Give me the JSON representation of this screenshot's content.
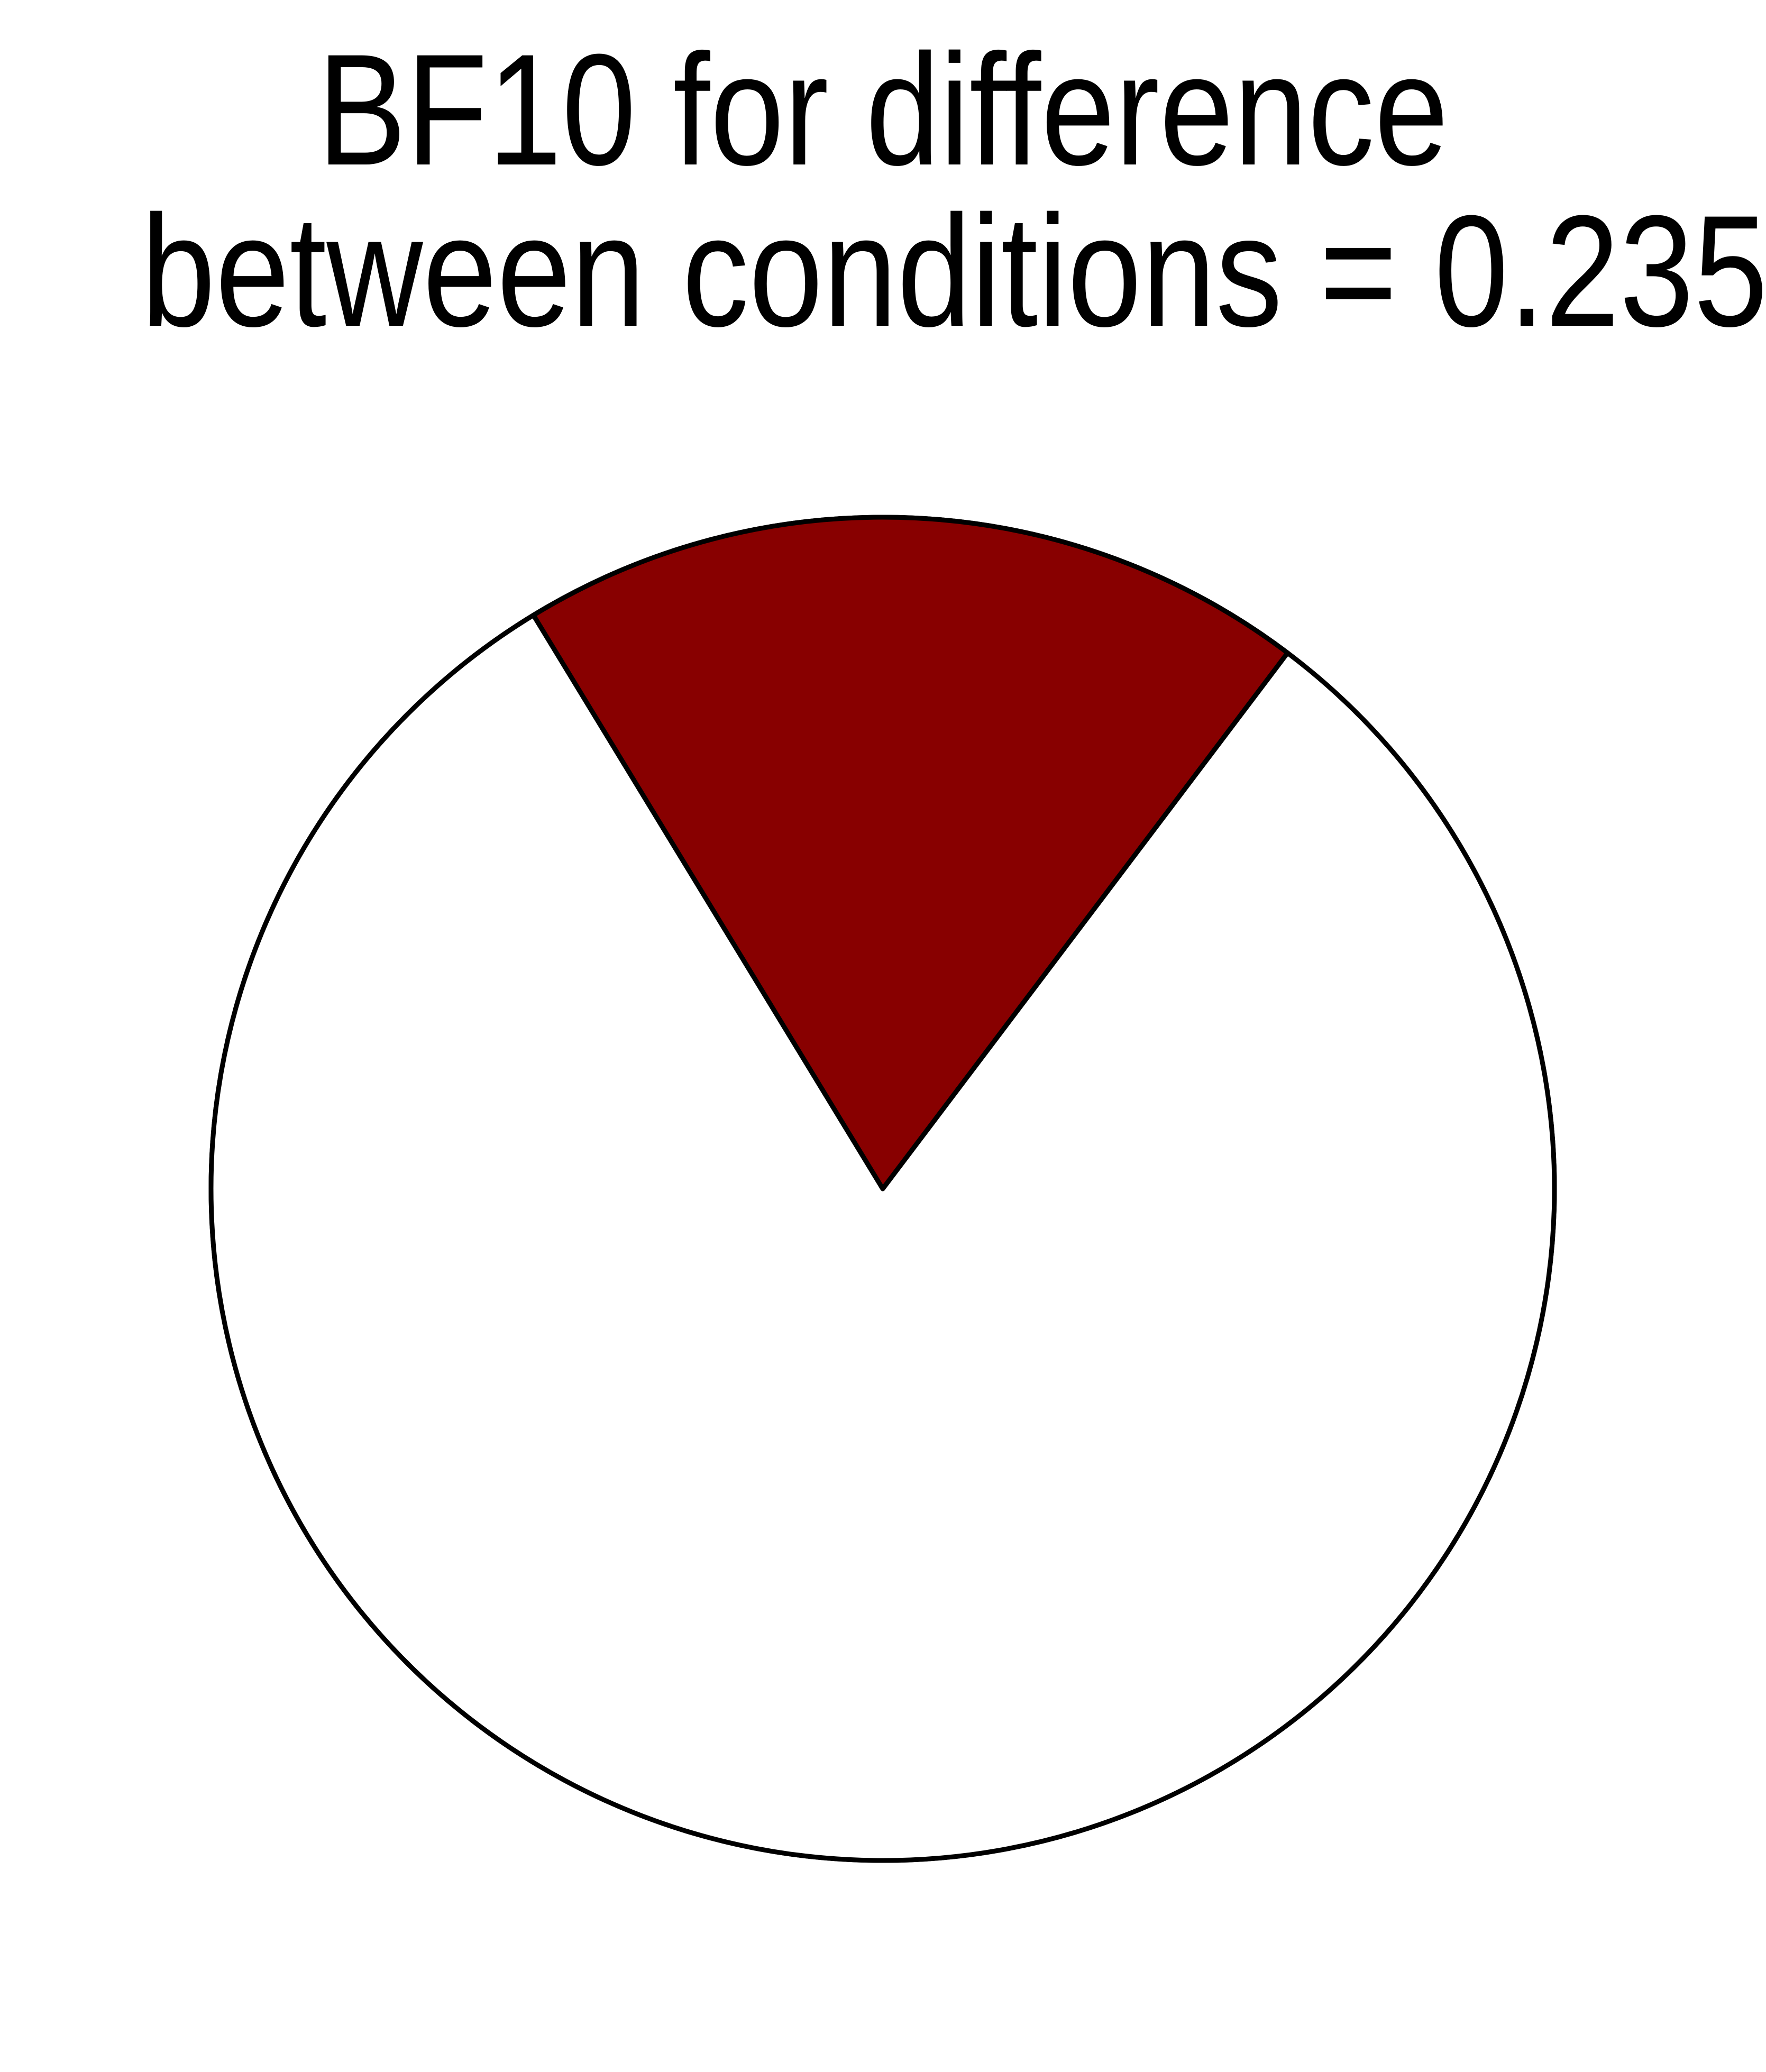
{
  "chart_data": {
    "type": "pie",
    "title": [
      "BF10 for difference",
      "between conditions = 0.235"
    ],
    "slices": [
      {
        "value": 0.19,
        "color": "#880000"
      },
      {
        "value": 0.81,
        "color": "#ffffff"
      }
    ],
    "legend": "none"
  }
}
